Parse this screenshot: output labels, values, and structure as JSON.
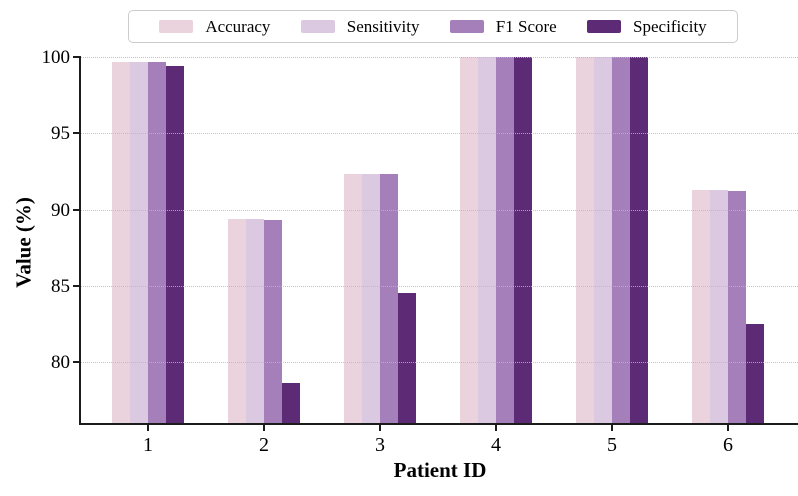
{
  "chart_data": {
    "type": "bar",
    "title": "",
    "xlabel": "Patient ID",
    "ylabel": "Value (%)",
    "categories": [
      "1",
      "2",
      "3",
      "4",
      "5",
      "6"
    ],
    "series": [
      {
        "name": "Accuracy",
        "color": "#EAD3DC",
        "values": [
          99.7,
          89.4,
          92.3,
          100,
          100,
          91.3
        ]
      },
      {
        "name": "Sensitivity",
        "color": "#DBC9E2",
        "values": [
          99.7,
          89.4,
          92.3,
          100,
          100,
          91.3
        ]
      },
      {
        "name": "F1 Score",
        "color": "#A57FBA",
        "values": [
          99.7,
          89.3,
          92.3,
          100,
          100,
          91.2
        ]
      },
      {
        "name": "Specificity",
        "color": "#5D2B76",
        "values": [
          99.4,
          78.6,
          84.5,
          100,
          100,
          82.5
        ]
      }
    ],
    "ylim": [
      76,
      100
    ],
    "yticks": [
      80,
      85,
      90,
      95,
      100
    ],
    "grid": "horizontal-dotted",
    "legend_position": "top-center",
    "axis_color": "#1c1c1c",
    "grid_color": "#b9b9b9",
    "background_color": "#ffffff"
  }
}
